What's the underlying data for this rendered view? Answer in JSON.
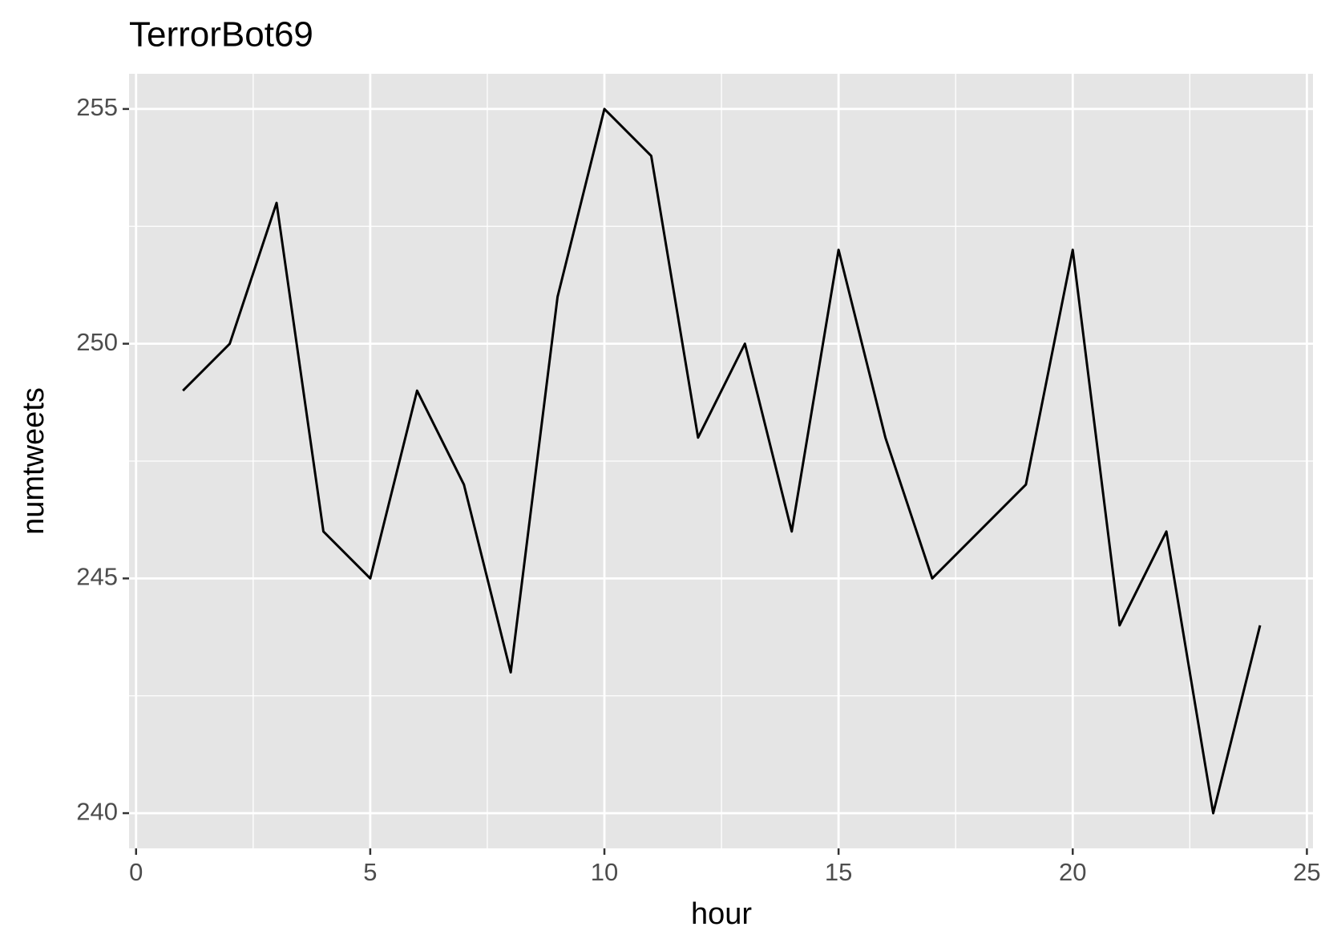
{
  "chart_data": {
    "type": "line",
    "title": "TerrorBot69",
    "x_label": "hour",
    "y_label": "numtweets",
    "x": [
      1,
      2,
      3,
      4,
      5,
      6,
      7,
      8,
      9,
      10,
      11,
      12,
      13,
      14,
      15,
      16,
      17,
      18,
      19,
      20,
      21,
      22,
      23,
      24
    ],
    "series": [
      {
        "name": "numtweets",
        "color": "#000000",
        "values": [
          249,
          250,
          253,
          246,
          245,
          249,
          247,
          243,
          251,
          255,
          254,
          248,
          250,
          246,
          252,
          248,
          245,
          246,
          247,
          252,
          244,
          246,
          240,
          244
        ]
      }
    ],
    "xlim": [
      -0.15,
      25.13
    ],
    "xticks": [
      0,
      5,
      10,
      15,
      20,
      25
    ],
    "ylim": [
      239.25,
      255.75
    ],
    "yticks": [
      240,
      245,
      250,
      255
    ],
    "grid": true
  }
}
